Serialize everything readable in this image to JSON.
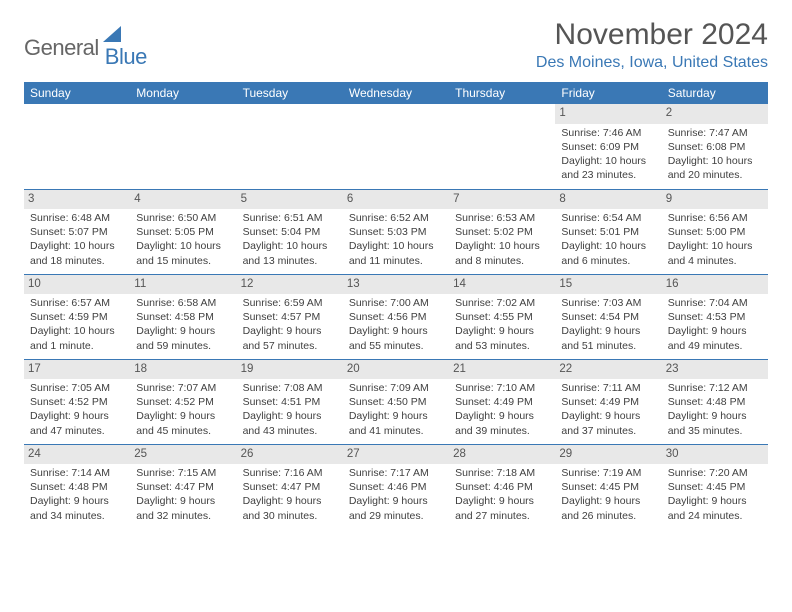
{
  "logo": {
    "textGray": "General",
    "textBlue": "Blue"
  },
  "title": "November 2024",
  "location": "Des Moines, Iowa, United States",
  "colors": {
    "brand": "#3a78b5",
    "headerText": "#ffffff",
    "bodyText": "#404040",
    "dayNumBg": "#e8e8e8"
  },
  "weekdays": [
    "Sunday",
    "Monday",
    "Tuesday",
    "Wednesday",
    "Thursday",
    "Friday",
    "Saturday"
  ],
  "weeks": [
    [
      {
        "n": "",
        "sr": "",
        "ss": "",
        "dl": ""
      },
      {
        "n": "",
        "sr": "",
        "ss": "",
        "dl": ""
      },
      {
        "n": "",
        "sr": "",
        "ss": "",
        "dl": ""
      },
      {
        "n": "",
        "sr": "",
        "ss": "",
        "dl": ""
      },
      {
        "n": "",
        "sr": "",
        "ss": "",
        "dl": ""
      },
      {
        "n": "1",
        "sr": "Sunrise: 7:46 AM",
        "ss": "Sunset: 6:09 PM",
        "dl": "Daylight: 10 hours and 23 minutes."
      },
      {
        "n": "2",
        "sr": "Sunrise: 7:47 AM",
        "ss": "Sunset: 6:08 PM",
        "dl": "Daylight: 10 hours and 20 minutes."
      }
    ],
    [
      {
        "n": "3",
        "sr": "Sunrise: 6:48 AM",
        "ss": "Sunset: 5:07 PM",
        "dl": "Daylight: 10 hours and 18 minutes."
      },
      {
        "n": "4",
        "sr": "Sunrise: 6:50 AM",
        "ss": "Sunset: 5:05 PM",
        "dl": "Daylight: 10 hours and 15 minutes."
      },
      {
        "n": "5",
        "sr": "Sunrise: 6:51 AM",
        "ss": "Sunset: 5:04 PM",
        "dl": "Daylight: 10 hours and 13 minutes."
      },
      {
        "n": "6",
        "sr": "Sunrise: 6:52 AM",
        "ss": "Sunset: 5:03 PM",
        "dl": "Daylight: 10 hours and 11 minutes."
      },
      {
        "n": "7",
        "sr": "Sunrise: 6:53 AM",
        "ss": "Sunset: 5:02 PM",
        "dl": "Daylight: 10 hours and 8 minutes."
      },
      {
        "n": "8",
        "sr": "Sunrise: 6:54 AM",
        "ss": "Sunset: 5:01 PM",
        "dl": "Daylight: 10 hours and 6 minutes."
      },
      {
        "n": "9",
        "sr": "Sunrise: 6:56 AM",
        "ss": "Sunset: 5:00 PM",
        "dl": "Daylight: 10 hours and 4 minutes."
      }
    ],
    [
      {
        "n": "10",
        "sr": "Sunrise: 6:57 AM",
        "ss": "Sunset: 4:59 PM",
        "dl": "Daylight: 10 hours and 1 minute."
      },
      {
        "n": "11",
        "sr": "Sunrise: 6:58 AM",
        "ss": "Sunset: 4:58 PM",
        "dl": "Daylight: 9 hours and 59 minutes."
      },
      {
        "n": "12",
        "sr": "Sunrise: 6:59 AM",
        "ss": "Sunset: 4:57 PM",
        "dl": "Daylight: 9 hours and 57 minutes."
      },
      {
        "n": "13",
        "sr": "Sunrise: 7:00 AM",
        "ss": "Sunset: 4:56 PM",
        "dl": "Daylight: 9 hours and 55 minutes."
      },
      {
        "n": "14",
        "sr": "Sunrise: 7:02 AM",
        "ss": "Sunset: 4:55 PM",
        "dl": "Daylight: 9 hours and 53 minutes."
      },
      {
        "n": "15",
        "sr": "Sunrise: 7:03 AM",
        "ss": "Sunset: 4:54 PM",
        "dl": "Daylight: 9 hours and 51 minutes."
      },
      {
        "n": "16",
        "sr": "Sunrise: 7:04 AM",
        "ss": "Sunset: 4:53 PM",
        "dl": "Daylight: 9 hours and 49 minutes."
      }
    ],
    [
      {
        "n": "17",
        "sr": "Sunrise: 7:05 AM",
        "ss": "Sunset: 4:52 PM",
        "dl": "Daylight: 9 hours and 47 minutes."
      },
      {
        "n": "18",
        "sr": "Sunrise: 7:07 AM",
        "ss": "Sunset: 4:52 PM",
        "dl": "Daylight: 9 hours and 45 minutes."
      },
      {
        "n": "19",
        "sr": "Sunrise: 7:08 AM",
        "ss": "Sunset: 4:51 PM",
        "dl": "Daylight: 9 hours and 43 minutes."
      },
      {
        "n": "20",
        "sr": "Sunrise: 7:09 AM",
        "ss": "Sunset: 4:50 PM",
        "dl": "Daylight: 9 hours and 41 minutes."
      },
      {
        "n": "21",
        "sr": "Sunrise: 7:10 AM",
        "ss": "Sunset: 4:49 PM",
        "dl": "Daylight: 9 hours and 39 minutes."
      },
      {
        "n": "22",
        "sr": "Sunrise: 7:11 AM",
        "ss": "Sunset: 4:49 PM",
        "dl": "Daylight: 9 hours and 37 minutes."
      },
      {
        "n": "23",
        "sr": "Sunrise: 7:12 AM",
        "ss": "Sunset: 4:48 PM",
        "dl": "Daylight: 9 hours and 35 minutes."
      }
    ],
    [
      {
        "n": "24",
        "sr": "Sunrise: 7:14 AM",
        "ss": "Sunset: 4:48 PM",
        "dl": "Daylight: 9 hours and 34 minutes."
      },
      {
        "n": "25",
        "sr": "Sunrise: 7:15 AM",
        "ss": "Sunset: 4:47 PM",
        "dl": "Daylight: 9 hours and 32 minutes."
      },
      {
        "n": "26",
        "sr": "Sunrise: 7:16 AM",
        "ss": "Sunset: 4:47 PM",
        "dl": "Daylight: 9 hours and 30 minutes."
      },
      {
        "n": "27",
        "sr": "Sunrise: 7:17 AM",
        "ss": "Sunset: 4:46 PM",
        "dl": "Daylight: 9 hours and 29 minutes."
      },
      {
        "n": "28",
        "sr": "Sunrise: 7:18 AM",
        "ss": "Sunset: 4:46 PM",
        "dl": "Daylight: 9 hours and 27 minutes."
      },
      {
        "n": "29",
        "sr": "Sunrise: 7:19 AM",
        "ss": "Sunset: 4:45 PM",
        "dl": "Daylight: 9 hours and 26 minutes."
      },
      {
        "n": "30",
        "sr": "Sunrise: 7:20 AM",
        "ss": "Sunset: 4:45 PM",
        "dl": "Daylight: 9 hours and 24 minutes."
      }
    ]
  ]
}
